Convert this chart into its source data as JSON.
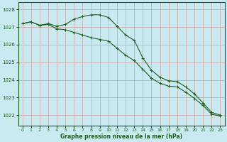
{
  "title": "Graphe pression niveau de la mer (hPa)",
  "bg_color": "#c8eaf0",
  "line_color": "#1e5c1e",
  "x_ticks": [
    0,
    1,
    2,
    3,
    4,
    5,
    6,
    7,
    8,
    9,
    10,
    11,
    12,
    13,
    14,
    15,
    16,
    17,
    18,
    19,
    20,
    21,
    22,
    23
  ],
  "y_ticks": [
    1022,
    1023,
    1024,
    1025,
    1026,
    1027,
    1028
  ],
  "ylim": [
    1021.4,
    1028.4
  ],
  "xlim": [
    -0.5,
    23.5
  ],
  "line1_x": [
    0,
    1,
    2,
    3,
    4,
    5,
    6,
    7,
    8,
    9,
    10,
    11,
    12,
    13,
    14,
    15,
    16,
    17,
    18,
    19,
    20,
    21,
    22,
    23
  ],
  "line1_y": [
    1027.2,
    1027.3,
    1027.1,
    1027.2,
    1027.05,
    1027.15,
    1027.45,
    1027.6,
    1027.7,
    1027.7,
    1027.55,
    1027.05,
    1026.55,
    1026.25,
    1025.25,
    1024.55,
    1024.15,
    1023.95,
    1023.9,
    1023.6,
    1023.2,
    1022.7,
    1022.15,
    1022.0
  ],
  "line2_x": [
    0,
    1,
    2,
    3,
    4,
    5,
    6,
    7,
    8,
    9,
    10,
    11,
    12,
    13,
    14,
    15,
    16,
    17,
    18,
    19,
    20,
    21,
    22,
    23
  ],
  "line2_y": [
    1027.2,
    1027.3,
    1027.1,
    1027.15,
    1026.9,
    1026.85,
    1026.7,
    1026.55,
    1026.4,
    1026.3,
    1026.2,
    1025.8,
    1025.4,
    1025.1,
    1024.6,
    1024.1,
    1023.8,
    1023.65,
    1023.6,
    1023.3,
    1022.95,
    1022.55,
    1022.05,
    1021.95
  ]
}
